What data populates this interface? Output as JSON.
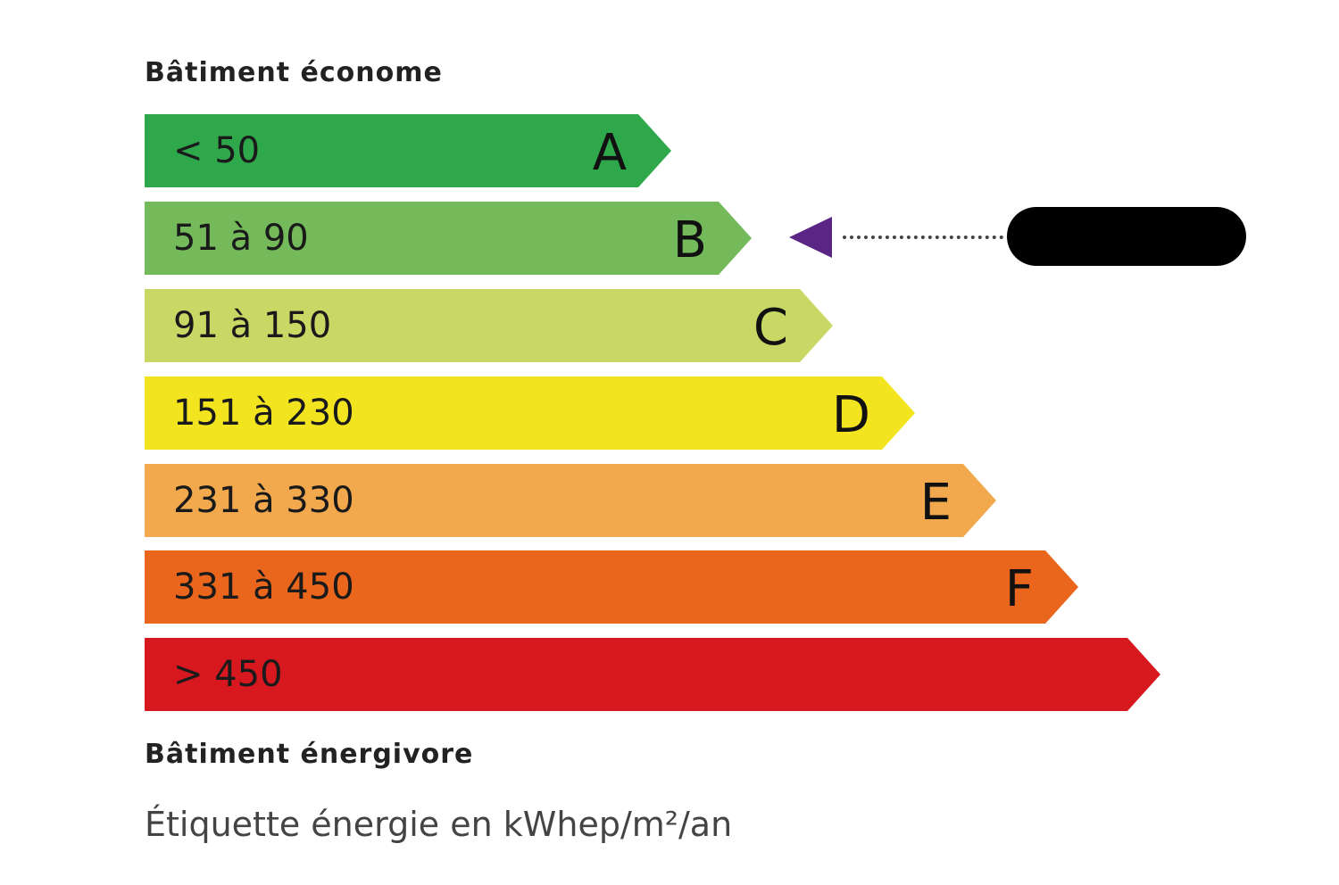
{
  "header": {
    "top_label": "Bâtiment économe",
    "bottom_label": "Bâtiment énergivore"
  },
  "caption": "Étiquette énergie en kWhep/m²/an",
  "classes": [
    {
      "letter": "A",
      "range": "< 50",
      "color": "#2ea84a"
    },
    {
      "letter": "B",
      "range": "51 à 90",
      "color": "#74b95a"
    },
    {
      "letter": "C",
      "range": "91 à 150",
      "color": "#c9d864"
    },
    {
      "letter": "D",
      "range": "151 à 230",
      "color": "#f2e51f"
    },
    {
      "letter": "E",
      "range": "231 à 330",
      "color": "#f2a94d"
    },
    {
      "letter": "F",
      "range": "331 à 450",
      "color": "#e9661c"
    },
    {
      "letter": "",
      "range": "> 450",
      "color": "#d7191f"
    }
  ],
  "indicator": {
    "class": "B",
    "color": "#5b2585"
  }
}
